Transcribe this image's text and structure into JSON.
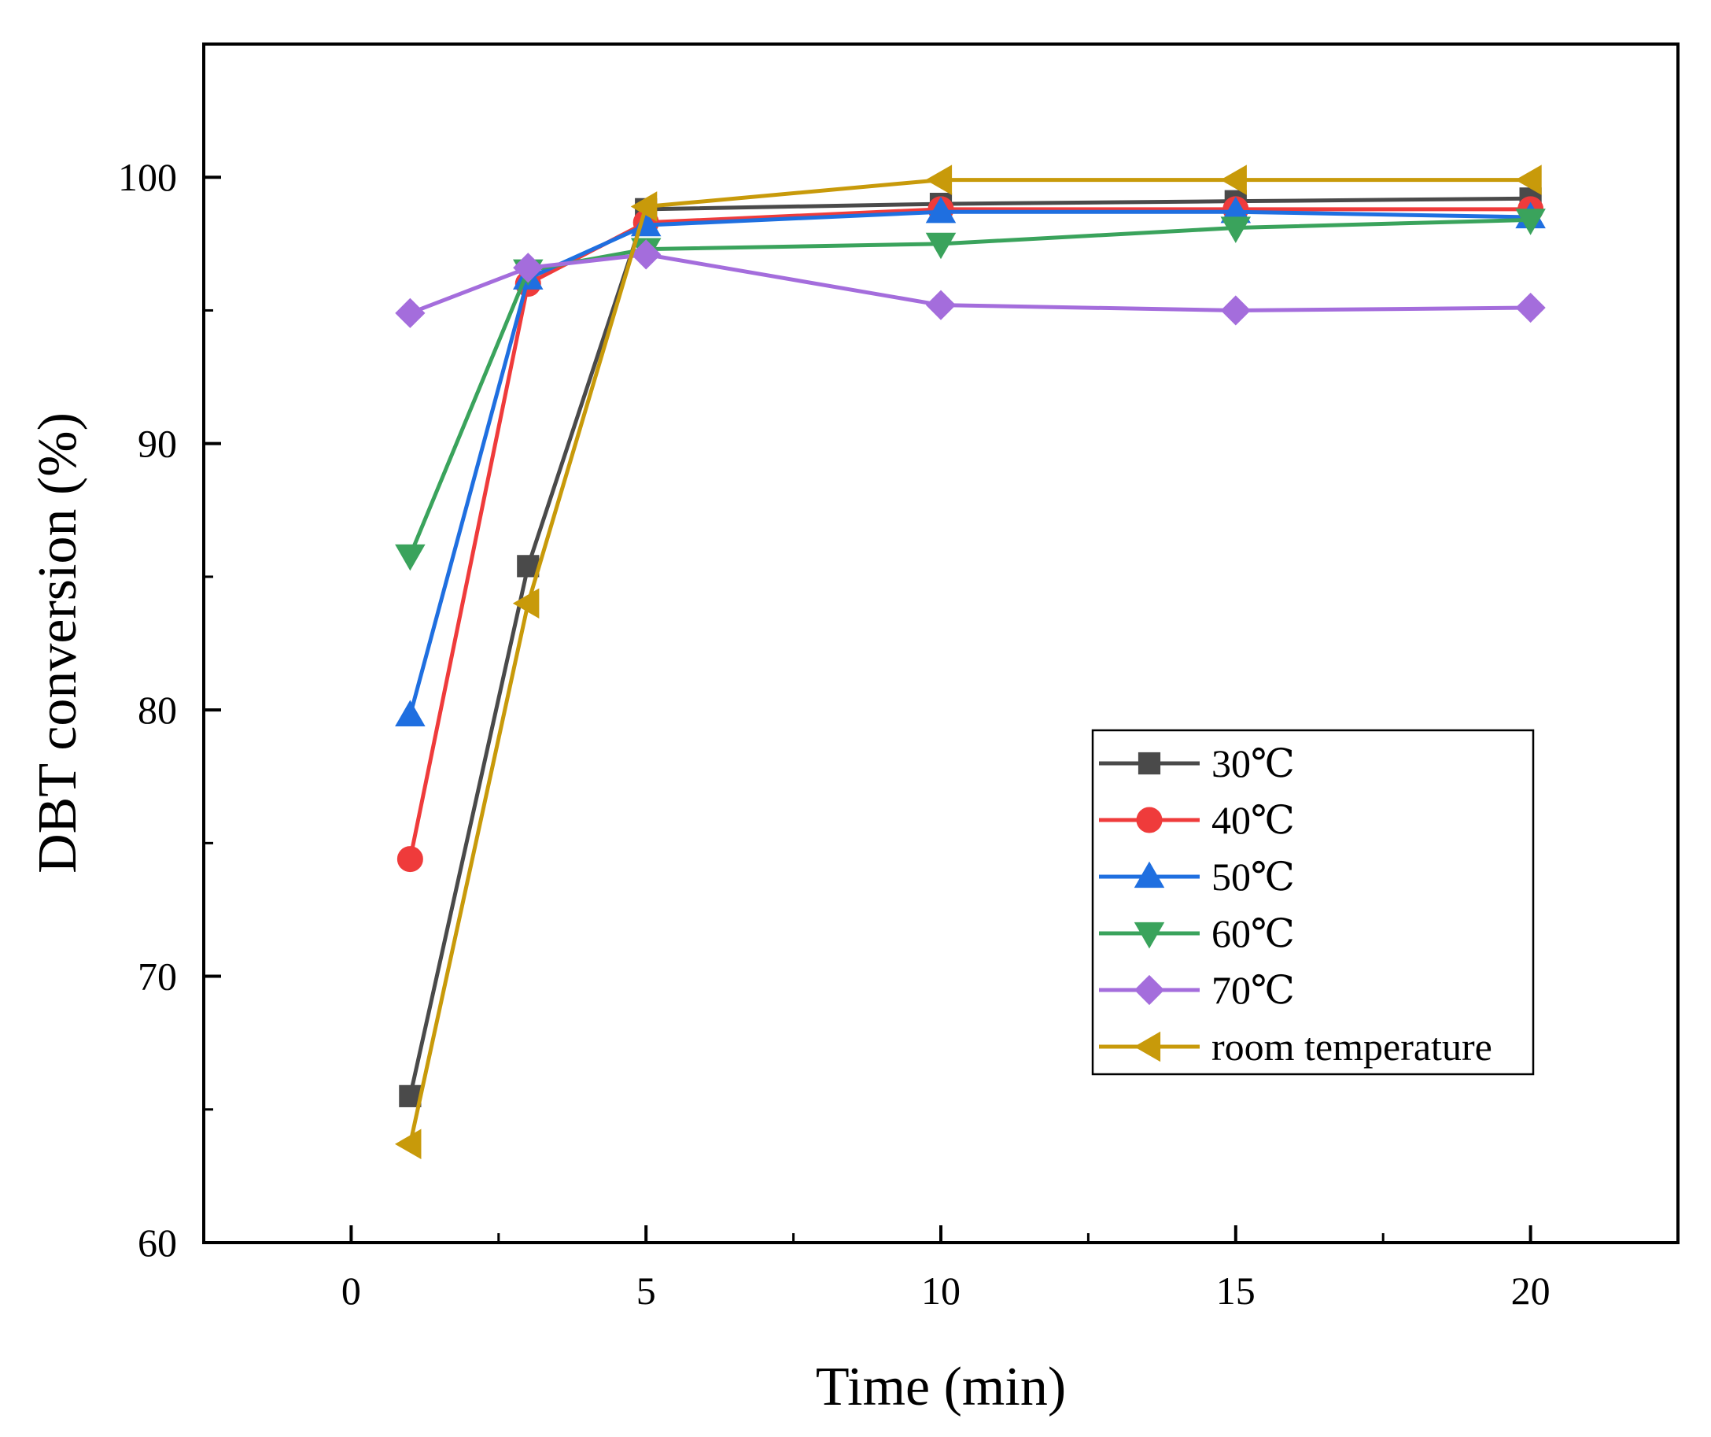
{
  "chart_data": {
    "type": "line",
    "title": "",
    "xlabel": "Time (min)",
    "ylabel": "DBT conversion (%)",
    "xlim": [
      -2.5,
      22.5
    ],
    "ylim": [
      60,
      105
    ],
    "xticks": [
      0,
      5,
      10,
      15,
      20
    ],
    "yticks": [
      60,
      70,
      80,
      90,
      100
    ],
    "x_minor_step": 2.5,
    "y_minor_step": 5,
    "grid": false,
    "legend_position": "bottom-right",
    "x": [
      1,
      3,
      5,
      10,
      15,
      20
    ],
    "series": [
      {
        "name": "30℃",
        "color": "#4a4a4a",
        "marker": "square",
        "values": [
          65.5,
          85.4,
          98.8,
          99.0,
          99.1,
          99.2
        ]
      },
      {
        "name": "40℃",
        "color": "#ef3b3b",
        "marker": "circle",
        "values": [
          74.4,
          96.0,
          98.3,
          98.8,
          98.8,
          98.8
        ]
      },
      {
        "name": "50℃",
        "color": "#1f6fe0",
        "marker": "triangle-up",
        "values": [
          79.8,
          96.2,
          98.2,
          98.7,
          98.7,
          98.5
        ]
      },
      {
        "name": "60℃",
        "color": "#3aa35c",
        "marker": "triangle-down",
        "values": [
          85.8,
          96.5,
          97.3,
          97.5,
          98.1,
          98.4
        ]
      },
      {
        "name": "70℃",
        "color": "#a46ddc",
        "marker": "diamond",
        "values": [
          94.9,
          96.6,
          97.1,
          95.2,
          95.0,
          95.1
        ]
      },
      {
        "name": "room temperature",
        "color": "#c89a0a",
        "marker": "triangle-left",
        "values": [
          63.7,
          84.0,
          98.9,
          99.9,
          99.9,
          99.9
        ]
      }
    ]
  }
}
